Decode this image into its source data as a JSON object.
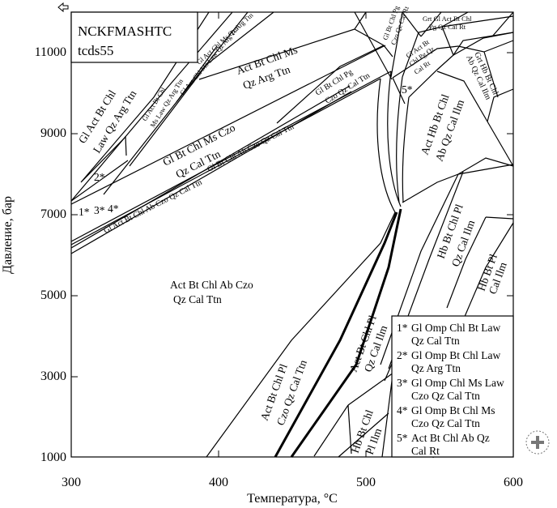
{
  "model": {
    "system": "NCKFMASHTC",
    "dataset": "tcds55"
  },
  "axes": {
    "x_label": "Температура, °С",
    "y_label": "Давление, бар",
    "x_ticks": [
      "300",
      "400",
      "500",
      "600"
    ],
    "y_ticks": [
      "1000",
      "3000",
      "5000",
      "7000",
      "9000",
      "11000"
    ]
  },
  "fields": {
    "f1": "Act Bt Chl Ab Czo",
    "f1b": "Qz Cal Ttn",
    "f2a": "Gl Act Bt Chl",
    "f2b": "Law Qz Arg Ttn",
    "f3a": "Gl Act Bt Chl",
    "f3b": "Ms Law Qz Arg Ttn",
    "f4": "Gl Act Chl Ms Law Qz Arg Ttn",
    "f5": "Gl Act Chl Ms Qz Arg Ttn",
    "f6a": "Act Bt Chl Ms",
    "f6b": "Qz Arg Ttn",
    "f7a": "Gl Bt Chl Ms Czo",
    "f7b": "Qz Cal Ttn",
    "f8": "Gl Bt Chl Ab Czo Qz Cal Ttn",
    "f9": "Gl Act Bt Chl Ab Czo Qz Cal Ttn",
    "f10a": "Gl Bt Chl Pg",
    "f10b": "Czo Qz Cal Ttn",
    "f11a": "Gl Bt Chl Pg",
    "f11b": "Czo Qz Cal Rt",
    "f12a": "Grt Gl Act Bt Chl",
    "f12b": "Pg Qz Cal Rt",
    "f13a": "Gl Act Bt",
    "f13b": "Chl Pg Qz",
    "f13c": "Cal Rt",
    "f14a": "Grt Hb Bt Chl",
    "f14b": "Ab Qz Cal Ilm",
    "f15a": "Act Hb Bt Chl",
    "f15b": "Ab Qz Cal Ilm",
    "f16a": "Hb Bt Chl Pl",
    "f16b": "Qz Cal Ilm",
    "f17a": "Hb Bt Pl",
    "f17b": "Cal Ilm",
    "f18a": "Act Bt Chl Pl",
    "f18b": "Czo Qz Cal Ttn",
    "f19a": "Act Bt Chl Pl",
    "f19b": "Qz Cal Ilm",
    "f20a": "Hb Bt Chl",
    "f20b": "Pl Ilm"
  },
  "point_labels": {
    "p1": "1*",
    "p2": "2*",
    "p3": "3*",
    "p4": "4*",
    "p5": "5*"
  },
  "legend": [
    {
      "key": "1*",
      "l1": "Gl Omp Chl Bt Law",
      "l2": "Qz Cal Ttn"
    },
    {
      "key": "2*",
      "l1": "Gl Omp Bt Chl Law",
      "l2": "Qz Arg Ttn"
    },
    {
      "key": "3*",
      "l1": "Gl Omp Chl Ms Law",
      "l2": "Czo Qz Cal Ttn"
    },
    {
      "key": "4*",
      "l1": "Gl Omp Bt Chl Ms",
      "l2": "Czo Qz Cal Ttn"
    },
    {
      "key": "5*",
      "l1": "Act Bt Chl Ab Qz",
      "l2": "Cal Rt"
    }
  ]
}
